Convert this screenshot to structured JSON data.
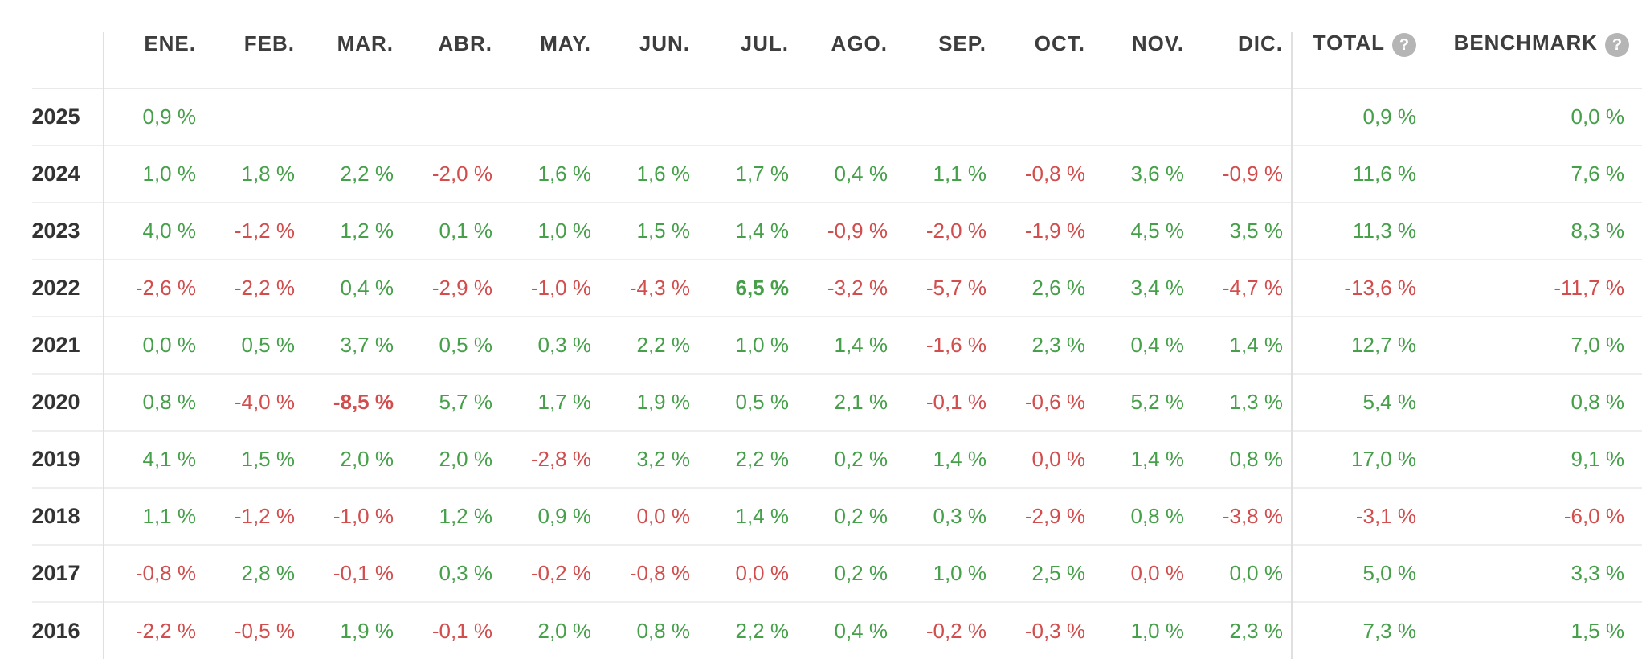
{
  "table": {
    "year_header": "",
    "months": [
      "ENE.",
      "FEB.",
      "MAR.",
      "ABR.",
      "MAY.",
      "JUN.",
      "JUL.",
      "AGO.",
      "SEP.",
      "OCT.",
      "NOV.",
      "DIC."
    ],
    "total_label": "TOTAL",
    "benchmark_label": "BENCHMARK",
    "help_icon_glyph": "?",
    "rows": [
      {
        "year": "2025",
        "cells": [
          {
            "v": "0,9 %",
            "s": "pos"
          },
          null,
          null,
          null,
          null,
          null,
          null,
          null,
          null,
          null,
          null,
          null
        ],
        "total": {
          "v": "0,9 %",
          "s": "pos"
        },
        "benchmark": {
          "v": "0,0 %",
          "s": "pos"
        }
      },
      {
        "year": "2024",
        "cells": [
          {
            "v": "1,0 %",
            "s": "pos"
          },
          {
            "v": "1,8 %",
            "s": "pos"
          },
          {
            "v": "2,2 %",
            "s": "pos"
          },
          {
            "v": "-2,0 %",
            "s": "neg"
          },
          {
            "v": "1,6 %",
            "s": "pos"
          },
          {
            "v": "1,6 %",
            "s": "pos"
          },
          {
            "v": "1,7 %",
            "s": "pos"
          },
          {
            "v": "0,4 %",
            "s": "pos"
          },
          {
            "v": "1,1 %",
            "s": "pos"
          },
          {
            "v": "-0,8 %",
            "s": "neg"
          },
          {
            "v": "3,6 %",
            "s": "pos"
          },
          {
            "v": "-0,9 %",
            "s": "neg"
          }
        ],
        "total": {
          "v": "11,6 %",
          "s": "pos"
        },
        "benchmark": {
          "v": "7,6 %",
          "s": "pos"
        }
      },
      {
        "year": "2023",
        "cells": [
          {
            "v": "4,0 %",
            "s": "pos"
          },
          {
            "v": "-1,2 %",
            "s": "neg"
          },
          {
            "v": "1,2 %",
            "s": "pos"
          },
          {
            "v": "0,1 %",
            "s": "pos"
          },
          {
            "v": "1,0 %",
            "s": "pos"
          },
          {
            "v": "1,5 %",
            "s": "pos"
          },
          {
            "v": "1,4 %",
            "s": "pos"
          },
          {
            "v": "-0,9 %",
            "s": "neg"
          },
          {
            "v": "-2,0 %",
            "s": "neg"
          },
          {
            "v": "-1,9 %",
            "s": "neg"
          },
          {
            "v": "4,5 %",
            "s": "pos"
          },
          {
            "v": "3,5 %",
            "s": "pos"
          }
        ],
        "total": {
          "v": "11,3 %",
          "s": "pos"
        },
        "benchmark": {
          "v": "8,3 %",
          "s": "pos"
        }
      },
      {
        "year": "2022",
        "cells": [
          {
            "v": "-2,6 %",
            "s": "neg"
          },
          {
            "v": "-2,2 %",
            "s": "neg"
          },
          {
            "v": "0,4 %",
            "s": "pos"
          },
          {
            "v": "-2,9 %",
            "s": "neg"
          },
          {
            "v": "-1,0 %",
            "s": "neg"
          },
          {
            "v": "-4,3 %",
            "s": "neg"
          },
          {
            "v": "6,5 %",
            "s": "pos",
            "bold": true
          },
          {
            "v": "-3,2 %",
            "s": "neg"
          },
          {
            "v": "-5,7 %",
            "s": "neg"
          },
          {
            "v": "2,6 %",
            "s": "pos"
          },
          {
            "v": "3,4 %",
            "s": "pos"
          },
          {
            "v": "-4,7 %",
            "s": "neg"
          }
        ],
        "total": {
          "v": "-13,6 %",
          "s": "neg"
        },
        "benchmark": {
          "v": "-11,7 %",
          "s": "neg"
        }
      },
      {
        "year": "2021",
        "cells": [
          {
            "v": "0,0 %",
            "s": "pos"
          },
          {
            "v": "0,5 %",
            "s": "pos"
          },
          {
            "v": "3,7 %",
            "s": "pos"
          },
          {
            "v": "0,5 %",
            "s": "pos"
          },
          {
            "v": "0,3 %",
            "s": "pos"
          },
          {
            "v": "2,2 %",
            "s": "pos"
          },
          {
            "v": "1,0 %",
            "s": "pos"
          },
          {
            "v": "1,4 %",
            "s": "pos"
          },
          {
            "v": "-1,6 %",
            "s": "neg"
          },
          {
            "v": "2,3 %",
            "s": "pos"
          },
          {
            "v": "0,4 %",
            "s": "pos"
          },
          {
            "v": "1,4 %",
            "s": "pos"
          }
        ],
        "total": {
          "v": "12,7 %",
          "s": "pos"
        },
        "benchmark": {
          "v": "7,0 %",
          "s": "pos"
        }
      },
      {
        "year": "2020",
        "cells": [
          {
            "v": "0,8 %",
            "s": "pos"
          },
          {
            "v": "-4,0 %",
            "s": "neg"
          },
          {
            "v": "-8,5 %",
            "s": "neg",
            "bold": true
          },
          {
            "v": "5,7 %",
            "s": "pos"
          },
          {
            "v": "1,7 %",
            "s": "pos"
          },
          {
            "v": "1,9 %",
            "s": "pos"
          },
          {
            "v": "0,5 %",
            "s": "pos"
          },
          {
            "v": "2,1 %",
            "s": "pos"
          },
          {
            "v": "-0,1 %",
            "s": "neg"
          },
          {
            "v": "-0,6 %",
            "s": "neg"
          },
          {
            "v": "5,2 %",
            "s": "pos"
          },
          {
            "v": "1,3 %",
            "s": "pos"
          }
        ],
        "total": {
          "v": "5,4 %",
          "s": "pos"
        },
        "benchmark": {
          "v": "0,8 %",
          "s": "pos"
        }
      },
      {
        "year": "2019",
        "cells": [
          {
            "v": "4,1 %",
            "s": "pos"
          },
          {
            "v": "1,5 %",
            "s": "pos"
          },
          {
            "v": "2,0 %",
            "s": "pos"
          },
          {
            "v": "2,0 %",
            "s": "pos"
          },
          {
            "v": "-2,8 %",
            "s": "neg"
          },
          {
            "v": "3,2 %",
            "s": "pos"
          },
          {
            "v": "2,2 %",
            "s": "pos"
          },
          {
            "v": "0,2 %",
            "s": "pos"
          },
          {
            "v": "1,4 %",
            "s": "pos"
          },
          {
            "v": "0,0 %",
            "s": "neg"
          },
          {
            "v": "1,4 %",
            "s": "pos"
          },
          {
            "v": "0,8 %",
            "s": "pos"
          }
        ],
        "total": {
          "v": "17,0 %",
          "s": "pos"
        },
        "benchmark": {
          "v": "9,1 %",
          "s": "pos"
        }
      },
      {
        "year": "2018",
        "cells": [
          {
            "v": "1,1 %",
            "s": "pos"
          },
          {
            "v": "-1,2 %",
            "s": "neg"
          },
          {
            "v": "-1,0 %",
            "s": "neg"
          },
          {
            "v": "1,2 %",
            "s": "pos"
          },
          {
            "v": "0,9 %",
            "s": "pos"
          },
          {
            "v": "0,0 %",
            "s": "neg"
          },
          {
            "v": "1,4 %",
            "s": "pos"
          },
          {
            "v": "0,2 %",
            "s": "pos"
          },
          {
            "v": "0,3 %",
            "s": "pos"
          },
          {
            "v": "-2,9 %",
            "s": "neg"
          },
          {
            "v": "0,8 %",
            "s": "pos"
          },
          {
            "v": "-3,8 %",
            "s": "neg"
          }
        ],
        "total": {
          "v": "-3,1 %",
          "s": "neg"
        },
        "benchmark": {
          "v": "-6,0 %",
          "s": "neg"
        }
      },
      {
        "year": "2017",
        "cells": [
          {
            "v": "-0,8 %",
            "s": "neg"
          },
          {
            "v": "2,8 %",
            "s": "pos"
          },
          {
            "v": "-0,1 %",
            "s": "neg"
          },
          {
            "v": "0,3 %",
            "s": "pos"
          },
          {
            "v": "-0,2 %",
            "s": "neg"
          },
          {
            "v": "-0,8 %",
            "s": "neg"
          },
          {
            "v": "0,0 %",
            "s": "neg"
          },
          {
            "v": "0,2 %",
            "s": "pos"
          },
          {
            "v": "1,0 %",
            "s": "pos"
          },
          {
            "v": "2,5 %",
            "s": "pos"
          },
          {
            "v": "0,0 %",
            "s": "neg"
          },
          {
            "v": "0,0 %",
            "s": "pos"
          }
        ],
        "total": {
          "v": "5,0 %",
          "s": "pos"
        },
        "benchmark": {
          "v": "3,3 %",
          "s": "pos"
        }
      },
      {
        "year": "2016",
        "cells": [
          {
            "v": "-2,2 %",
            "s": "neg"
          },
          {
            "v": "-0,5 %",
            "s": "neg"
          },
          {
            "v": "1,9 %",
            "s": "pos"
          },
          {
            "v": "-0,1 %",
            "s": "neg"
          },
          {
            "v": "2,0 %",
            "s": "pos"
          },
          {
            "v": "0,8 %",
            "s": "pos"
          },
          {
            "v": "2,2 %",
            "s": "pos"
          },
          {
            "v": "0,4 %",
            "s": "pos"
          },
          {
            "v": "-0,2 %",
            "s": "neg"
          },
          {
            "v": "-0,3 %",
            "s": "neg"
          },
          {
            "v": "1,0 %",
            "s": "pos"
          },
          {
            "v": "2,3 %",
            "s": "pos"
          }
        ],
        "total": {
          "v": "7,3 %",
          "s": "pos"
        },
        "benchmark": {
          "v": "1,5 %",
          "s": "pos"
        }
      }
    ]
  },
  "colors": {
    "positive": "#46a04a",
    "negative": "#d24d4d",
    "header_text": "#3d3d3d",
    "year_text": "#333333",
    "divider": "#e0e0e0",
    "row_separator": "#eeeeee",
    "help_icon_bg": "#b5b5b5"
  }
}
